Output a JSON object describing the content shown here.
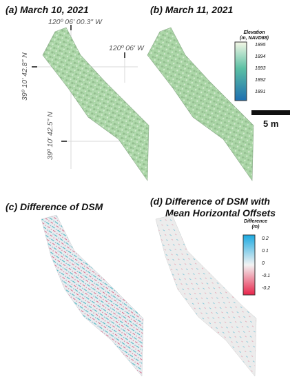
{
  "panels": {
    "a": {
      "title": "(a) March 10, 2021",
      "coord_lon_1": "120º 06' 00.3\" W",
      "coord_lon_2": "120º 06' W",
      "coord_lat_1": "39º 10' 42.8\" N",
      "coord_lat_2": "39º 10' 42.5\" N"
    },
    "b": {
      "title": "(b) March 11, 2021"
    },
    "c": {
      "title": "(c) Difference of DSM"
    },
    "d": {
      "title_line1": "(d) Difference of DSM with",
      "title_line2": "Mean Horizontal Offsets"
    }
  },
  "elevation_legend": {
    "title_line1": "Elevation",
    "title_line2": "(m, NAVD88)",
    "ticks": [
      "1895",
      "1894",
      "1893",
      "1892",
      "1891"
    ],
    "colors": {
      "top": "#f4f7e6",
      "mid": "#5cc0a4",
      "bottom": "#1e6fb0"
    }
  },
  "scalebar": {
    "label": "5 m"
  },
  "difference_legend": {
    "title_line1": "Difference",
    "title_line2": "(m)",
    "ticks": [
      "0.2",
      "0.1",
      "0",
      "-0.1",
      "-0.2"
    ],
    "colors": {
      "top": "#1aa9e0",
      "mid": "#f3f3f3",
      "bottom": "#e8244a"
    }
  }
}
